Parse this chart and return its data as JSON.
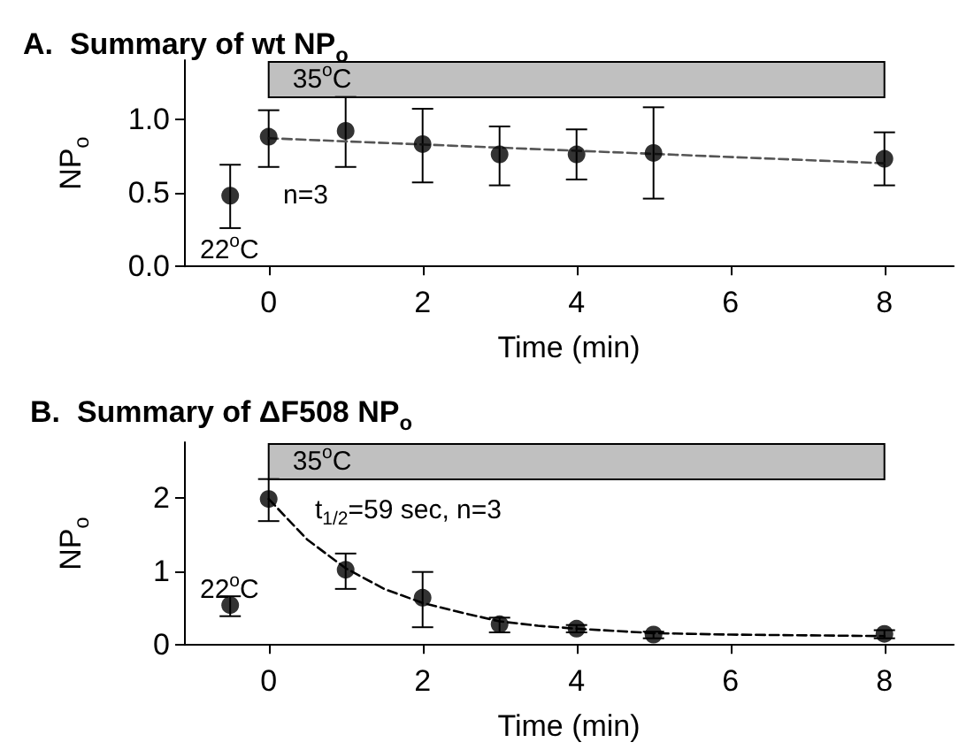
{
  "chart_data": [
    {
      "type": "scatter",
      "title": "A.  Summary of wt NP$_{o}$",
      "xlabel": "Time (min)",
      "ylabel": "NP$_{o}$",
      "x": [
        -0.5,
        0,
        1,
        2,
        3,
        4,
        5,
        8
      ],
      "xlim": [
        -1.1,
        8.9
      ],
      "xticks": [
        0,
        2,
        4,
        6,
        8
      ],
      "ylim": [
        0,
        1.4
      ],
      "yticks": [
        {
          "value": 0,
          "label": "0.0"
        },
        {
          "value": 0.5,
          "label": "0.5"
        },
        {
          "value": 1,
          "label": "1.0"
        }
      ],
      "series": [
        {
          "type": "scatter",
          "color": "#000000",
          "marker": "circle",
          "values": [
            0.48,
            0.88,
            0.92,
            0.83,
            0.76,
            0.76,
            0.77,
            0.73
          ],
          "errors": [
            [
              0.26,
              0.69
            ],
            [
              0.675,
              1.06
            ],
            [
              0.675,
              1.15
            ],
            [
              0.57,
              1.07
            ],
            [
              0.55,
              0.95
            ],
            [
              0.59,
              0.93
            ],
            [
              0.46,
              1.08
            ],
            [
              0.55,
              0.91
            ]
          ]
        },
        {
          "type": "line",
          "color": "#555555",
          "marker": "none",
          "line_style": "dashed",
          "x": [
            0,
            8
          ],
          "values": [
            0.87,
            0.7
          ]
        }
      ],
      "bands": [
        {
          "axis": "x",
          "from": 0,
          "to": 8,
          "label": "35$^{o}$C",
          "color": "#c0c0c0"
        }
      ],
      "annotations": [
        "22$^{o}$C",
        "n=3"
      ]
    },
    {
      "type": "scatter",
      "title": "B.  Summary of ΔF508 NP$_{o}$",
      "xlabel": "Time (min)",
      "ylabel": "NP$_{o}$",
      "x": [
        -0.5,
        0,
        1,
        2,
        3,
        4,
        5,
        8
      ],
      "xlim": [
        -1.1,
        8.9
      ],
      "xticks": [
        0,
        2,
        4,
        6,
        8
      ],
      "ylim": [
        0,
        2.75
      ],
      "yticks": [
        0,
        1,
        2
      ],
      "series": [
        {
          "type": "scatter",
          "color": "#000000",
          "marker": "circle",
          "values": [
            0.54,
            1.98,
            1.02,
            0.64,
            0.28,
            0.22,
            0.14,
            0.15
          ],
          "errors": [
            [
              0.39,
              0.66
            ],
            [
              1.68,
              2.25
            ],
            [
              0.76,
              1.24
            ],
            [
              0.24,
              0.99
            ],
            [
              0.17,
              0.37
            ],
            [
              0.17,
              0.27
            ],
            [
              0.09,
              0.18
            ],
            [
              0.09,
              0.2
            ]
          ]
        },
        {
          "type": "line",
          "color": "#000000",
          "marker": "none",
          "line_style": "dashed",
          "x": [
            0,
            0.5,
            1,
            1.5,
            2,
            2.5,
            3,
            3.5,
            4,
            5,
            6,
            7,
            8
          ],
          "values": [
            1.98,
            1.43,
            1.04,
            0.76,
            0.57,
            0.44,
            0.32,
            0.26,
            0.22,
            0.16,
            0.14,
            0.13,
            0.12
          ]
        }
      ],
      "bands": [
        {
          "axis": "x",
          "from": 0,
          "to": 8,
          "label": "35$^{o}$C",
          "color": "#c0c0c0"
        }
      ],
      "annotations": [
        "22$^{o}$C",
        "t$_{1/2}$=59 sec, n=3"
      ]
    }
  ]
}
